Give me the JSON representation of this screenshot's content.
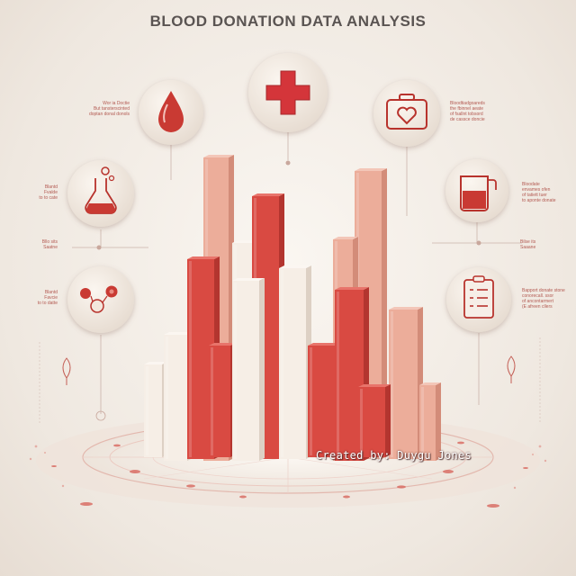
{
  "title": "BLOOD DONATION DATA ANALYSIS",
  "credit": "Created by: Duygu Jones",
  "palette": {
    "red": "#d4443c",
    "red_dark": "#a92f2a",
    "salmon": "#e7a08c",
    "cream": "#f1e8de",
    "icon_red": "#b8332d",
    "background": "#f2ece5"
  },
  "icons": [
    {
      "name": "blood-drop-icon"
    },
    {
      "name": "medical-cross-icon"
    },
    {
      "name": "heart-briefcase-icon"
    },
    {
      "name": "blood-flask-icon"
    },
    {
      "name": "blood-bag-icon"
    },
    {
      "name": "blood-cells-icon"
    },
    {
      "name": "checklist-icon"
    }
  ],
  "captions": [
    "Wor ia Doctie\nBut tansterscinted\ndoptan donal donols",
    "Blantd\nFvalde\nto to cate",
    "Bllo sits\nSaatne",
    "Blantd\nFavcie\nto to datte",
    "Bloodtiadgoareds\nthe fbinnel aeate\nof fsallnt tobsord\nde cassce doncie",
    "Bloodate\nenvames ofen\nof tatiett tuer\nto aponte donate",
    "Bilse its\nSaaane",
    "Bapport donate stone\nconorecall. ssor\nof ancontarmert\n(E afreen cllers"
  ]
}
